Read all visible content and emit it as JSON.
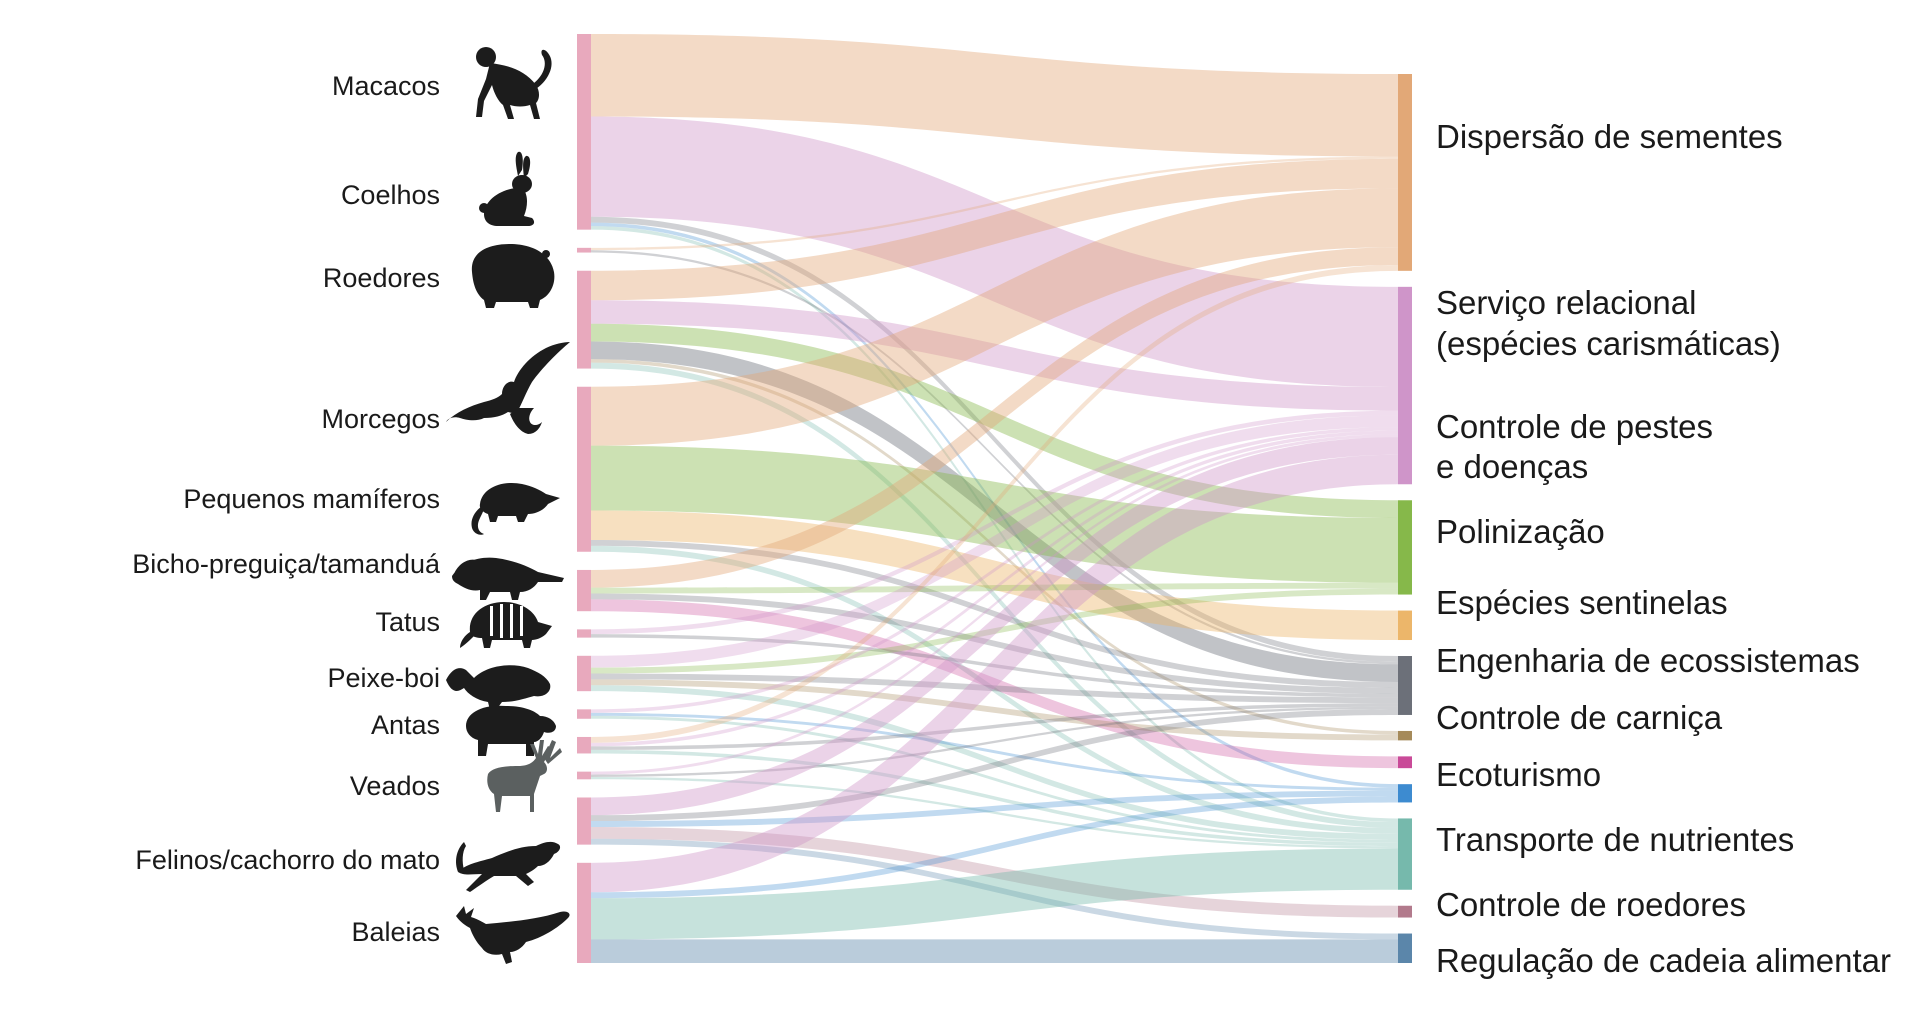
{
  "figure": {
    "sources": [
      {
        "id": "macacos",
        "label": "Macacos",
        "icon": "monkey-icon"
      },
      {
        "id": "coelhos",
        "label": "Coelhos",
        "icon": "rabbit-icon"
      },
      {
        "id": "roedores",
        "label": "Roedores",
        "icon": "rodent-icon"
      },
      {
        "id": "morcegos",
        "label": "Morcegos",
        "icon": "bat-icon"
      },
      {
        "id": "pequenos",
        "label": "Pequenos mamíferos",
        "icon": "opossum-icon"
      },
      {
        "id": "preguica",
        "label": "Bicho-preguiça/tamanduá",
        "icon": "anteater-icon"
      },
      {
        "id": "tatus",
        "label": "Tatus",
        "icon": "armadillo-icon"
      },
      {
        "id": "peixeboi",
        "label": "Peixe-boi",
        "icon": "manatee-icon"
      },
      {
        "id": "antas",
        "label": "Antas",
        "icon": "tapir-icon"
      },
      {
        "id": "veados",
        "label": "Veados",
        "icon": "deer-icon"
      },
      {
        "id": "felinos",
        "label": "Felinos/cachorro do mato",
        "icon": "feline-icon"
      },
      {
        "id": "baleias",
        "label": "Baleias",
        "icon": "whale-icon"
      }
    ],
    "targets": [
      {
        "id": "dispersao",
        "lines": [
          "Dispersão de sementes"
        ],
        "color": "#e2a877"
      },
      {
        "id": "relacional",
        "lines": [
          "Serviço relacional",
          "(espécies carismáticas)"
        ],
        "color": "#cf95c9"
      },
      {
        "id": "pestes",
        "lines": [
          "Controle de pestes",
          "e doenças"
        ],
        "color": "#86b84a"
      },
      {
        "id": "polinizacao",
        "lines": [
          "Polinização"
        ],
        "color": "#ecb66a"
      },
      {
        "id": "sentinelas",
        "lines": [
          "Espécies sentinelas"
        ],
        "color": "#6c7079"
      },
      {
        "id": "engenharia",
        "lines": [
          "Engenharia de ecossistemas"
        ],
        "color": "#a58a5a"
      },
      {
        "id": "carnica",
        "lines": [
          "Controle de carniça"
        ],
        "color": "#c94a98"
      },
      {
        "id": "ecoturismo",
        "lines": [
          "Ecoturismo"
        ],
        "color": "#3d8bd0"
      },
      {
        "id": "nutrientes",
        "lines": [
          "Transporte de nutrientes"
        ],
        "color": "#76b9ac"
      },
      {
        "id": "roedores_ctl",
        "lines": [
          "Controle de roedores"
        ],
        "color": "#b27a8c"
      },
      {
        "id": "cadeia",
        "lines": [
          "Regulação de cadeia alimentar"
        ],
        "color": "#5b86aa"
      }
    ],
    "flows": [
      {
        "source": "macacos",
        "target": "dispersao",
        "value": 14
      },
      {
        "source": "macacos",
        "target": "relacional",
        "value": 17
      },
      {
        "source": "macacos",
        "target": "sentinelas",
        "value": 1
      },
      {
        "source": "macacos",
        "target": "ecoturismo",
        "value": 0.6
      },
      {
        "source": "macacos",
        "target": "nutrientes",
        "value": 0.6
      },
      {
        "source": "coelhos",
        "target": "dispersao",
        "value": 0.4
      },
      {
        "source": "coelhos",
        "target": "sentinelas",
        "value": 0.4
      },
      {
        "source": "roedores",
        "target": "dispersao",
        "value": 5
      },
      {
        "source": "roedores",
        "target": "relacional",
        "value": 4
      },
      {
        "source": "roedores",
        "target": "pestes",
        "value": 3
      },
      {
        "source": "roedores",
        "target": "sentinelas",
        "value": 3
      },
      {
        "source": "roedores",
        "target": "nutrientes",
        "value": 1
      },
      {
        "source": "roedores",
        "target": "engenharia",
        "value": 0.6
      },
      {
        "source": "morcegos",
        "target": "dispersao",
        "value": 10
      },
      {
        "source": "morcegos",
        "target": "pestes",
        "value": 11
      },
      {
        "source": "morcegos",
        "target": "polinizacao",
        "value": 5
      },
      {
        "source": "morcegos",
        "target": "sentinelas",
        "value": 1
      },
      {
        "source": "morcegos",
        "target": "nutrientes",
        "value": 1
      },
      {
        "source": "pequenos",
        "target": "dispersao",
        "value": 3
      },
      {
        "source": "pequenos",
        "target": "carnica",
        "value": 2
      },
      {
        "source": "pequenos",
        "target": "pestes",
        "value": 1
      },
      {
        "source": "pequenos",
        "target": "sentinelas",
        "value": 1
      },
      {
        "source": "preguica",
        "target": "relacional",
        "value": 0.8
      },
      {
        "source": "preguica",
        "target": "sentinelas",
        "value": 0.6
      },
      {
        "source": "tatus",
        "target": "relacional",
        "value": 2
      },
      {
        "source": "tatus",
        "target": "pestes",
        "value": 1
      },
      {
        "source": "tatus",
        "target": "sentinelas",
        "value": 1
      },
      {
        "source": "tatus",
        "target": "engenharia",
        "value": 1
      },
      {
        "source": "tatus",
        "target": "nutrientes",
        "value": 1
      },
      {
        "source": "peixeboi",
        "target": "relacional",
        "value": 0.6
      },
      {
        "source": "peixeboi",
        "target": "ecoturismo",
        "value": 0.5
      },
      {
        "source": "peixeboi",
        "target": "nutrientes",
        "value": 0.5
      },
      {
        "source": "antas",
        "target": "dispersao",
        "value": 1
      },
      {
        "source": "antas",
        "target": "relacional",
        "value": 0.6
      },
      {
        "source": "antas",
        "target": "sentinelas",
        "value": 0.6
      },
      {
        "source": "antas",
        "target": "nutrientes",
        "value": 0.6
      },
      {
        "source": "veados",
        "target": "relacional",
        "value": 0.5
      },
      {
        "source": "veados",
        "target": "sentinelas",
        "value": 0.4
      },
      {
        "source": "veados",
        "target": "nutrientes",
        "value": 0.4
      },
      {
        "source": "felinos",
        "target": "relacional",
        "value": 3
      },
      {
        "source": "felinos",
        "target": "roedores_ctl",
        "value": 2
      },
      {
        "source": "felinos",
        "target": "sentinelas",
        "value": 1
      },
      {
        "source": "felinos",
        "target": "ecoturismo",
        "value": 1
      },
      {
        "source": "felinos",
        "target": "cadeia",
        "value": 1
      },
      {
        "source": "baleias",
        "target": "relacional",
        "value": 5
      },
      {
        "source": "baleias",
        "target": "nutrientes",
        "value": 7
      },
      {
        "source": "baleias",
        "target": "cadeia",
        "value": 4
      },
      {
        "source": "baleias",
        "target": "ecoturismo",
        "value": 1
      }
    ]
  }
}
